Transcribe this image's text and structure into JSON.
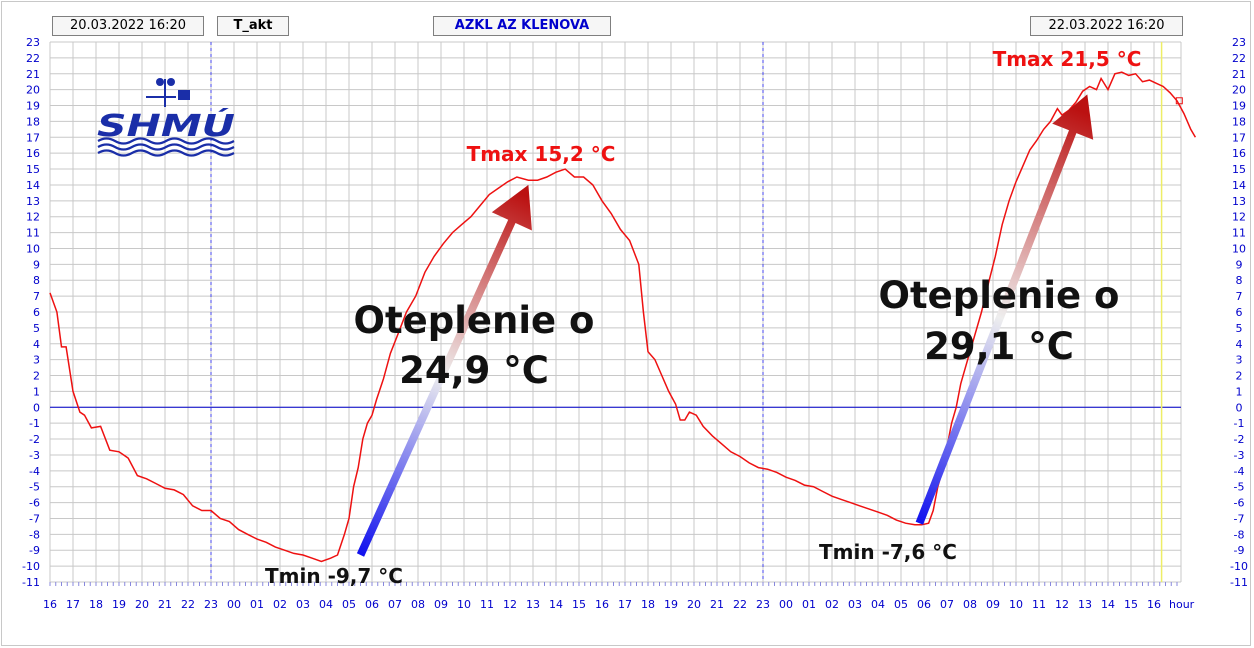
{
  "header": {
    "date_start": "20.03.2022 16:20",
    "parameter": "T_akt",
    "station": "AZKL AZ KLENOVA",
    "date_end": "22.03.2022 16:20"
  },
  "logo": {
    "text": "SHMÚ",
    "color": "#1a2ea8"
  },
  "colors": {
    "series": "#ee1111",
    "axis_labels": "#0000cc",
    "grid": "#c8c8c8",
    "zero_line": "#0000cc",
    "midnight_line": "#4444ee",
    "now_line": "#eeee66",
    "arrow_bottom": "#1111ee",
    "arrow_top": "#bb1111",
    "annotation_dark": "#111111"
  },
  "annotations": {
    "tmax1": "Tmax 15,2 °C",
    "tmax2": "Tmax 21,5 °C",
    "tmin1": "Tmin -9,7 °C",
    "tmin2": "Tmin -7,6 °C",
    "warming1_line1": "Oteplenie o",
    "warming1_line2": "24,9 °C",
    "warming2_line1": "Oteplenie o",
    "warming2_line2": "29,1 °C"
  },
  "chart_data": {
    "type": "line",
    "xlabel": "hour",
    "ylim": [
      -11,
      23
    ],
    "yticks": [
      23,
      22,
      21,
      20,
      19,
      18,
      17,
      16,
      15,
      14,
      13,
      12,
      11,
      10,
      9,
      8,
      7,
      6,
      5,
      4,
      3,
      2,
      1,
      0,
      -1,
      -2,
      -3,
      -4,
      -5,
      -6,
      -7,
      -8,
      -9,
      -10,
      -11
    ],
    "x_tick_labels": [
      "16",
      "17",
      "18",
      "19",
      "20",
      "21",
      "22",
      "23",
      "00",
      "01",
      "02",
      "03",
      "04",
      "05",
      "06",
      "07",
      "08",
      "09",
      "10",
      "11",
      "12",
      "13",
      "14",
      "15",
      "16",
      "17",
      "18",
      "19",
      "20",
      "21",
      "22",
      "23",
      "00",
      "01",
      "02",
      "03",
      "04",
      "05",
      "06",
      "07",
      "08",
      "09",
      "10",
      "11",
      "12",
      "13",
      "14",
      "15",
      "16"
    ],
    "x_unit": "hours since 20.03.2022 16:00",
    "grid": true,
    "series": [
      {
        "points": [
          [
            0.0,
            7.2
          ],
          [
            0.3,
            6.0
          ],
          [
            0.5,
            3.8
          ],
          [
            0.7,
            3.8
          ],
          [
            1.0,
            1.0
          ],
          [
            1.3,
            -0.3
          ],
          [
            1.5,
            -0.5
          ],
          [
            1.8,
            -1.3
          ],
          [
            2.2,
            -1.2
          ],
          [
            2.6,
            -2.7
          ],
          [
            3.0,
            -2.8
          ],
          [
            3.4,
            -3.2
          ],
          [
            3.8,
            -4.3
          ],
          [
            4.2,
            -4.5
          ],
          [
            4.6,
            -4.8
          ],
          [
            5.0,
            -5.1
          ],
          [
            5.4,
            -5.2
          ],
          [
            5.8,
            -5.5
          ],
          [
            6.2,
            -6.2
          ],
          [
            6.6,
            -6.5
          ],
          [
            7.0,
            -6.5
          ],
          [
            7.4,
            -7.0
          ],
          [
            7.8,
            -7.2
          ],
          [
            8.2,
            -7.7
          ],
          [
            8.6,
            -8.0
          ],
          [
            9.0,
            -8.3
          ],
          [
            9.4,
            -8.5
          ],
          [
            9.8,
            -8.8
          ],
          [
            10.2,
            -9.0
          ],
          [
            10.6,
            -9.2
          ],
          [
            11.0,
            -9.3
          ],
          [
            11.4,
            -9.5
          ],
          [
            11.8,
            -9.7
          ],
          [
            12.2,
            -9.5
          ],
          [
            12.5,
            -9.3
          ],
          [
            12.8,
            -8.0
          ],
          [
            13.0,
            -7.0
          ],
          [
            13.2,
            -5.0
          ],
          [
            13.4,
            -3.8
          ],
          [
            13.6,
            -2.0
          ],
          [
            13.8,
            -1.0
          ],
          [
            14.0,
            -0.5
          ],
          [
            14.2,
            0.5
          ],
          [
            14.5,
            1.8
          ],
          [
            14.8,
            3.4
          ],
          [
            15.1,
            4.5
          ],
          [
            15.5,
            6.0
          ],
          [
            15.9,
            7.0
          ],
          [
            16.3,
            8.5
          ],
          [
            16.7,
            9.5
          ],
          [
            17.1,
            10.3
          ],
          [
            17.5,
            11.0
          ],
          [
            17.9,
            11.5
          ],
          [
            18.3,
            12.0
          ],
          [
            18.7,
            12.7
          ],
          [
            19.1,
            13.4
          ],
          [
            19.5,
            13.8
          ],
          [
            19.9,
            14.2
          ],
          [
            20.3,
            14.5
          ],
          [
            20.8,
            14.3
          ],
          [
            21.2,
            14.3
          ],
          [
            21.6,
            14.5
          ],
          [
            22.0,
            14.8
          ],
          [
            22.4,
            15.0
          ],
          [
            22.8,
            14.5
          ],
          [
            23.2,
            14.5
          ],
          [
            23.6,
            14.0
          ],
          [
            24.0,
            13.0
          ],
          [
            24.4,
            12.2
          ],
          [
            24.8,
            11.2
          ],
          [
            25.2,
            10.5
          ],
          [
            25.6,
            9.0
          ],
          [
            25.8,
            6.0
          ],
          [
            26.0,
            3.5
          ],
          [
            26.3,
            3.0
          ],
          [
            26.6,
            2.0
          ],
          [
            26.9,
            1.0
          ],
          [
            27.2,
            0.2
          ],
          [
            27.4,
            -0.8
          ],
          [
            27.6,
            -0.8
          ],
          [
            27.8,
            -0.3
          ],
          [
            28.1,
            -0.5
          ],
          [
            28.4,
            -1.2
          ],
          [
            28.8,
            -1.8
          ],
          [
            29.2,
            -2.3
          ],
          [
            29.6,
            -2.8
          ],
          [
            30.0,
            -3.1
          ],
          [
            30.4,
            -3.5
          ],
          [
            30.8,
            -3.8
          ],
          [
            31.2,
            -3.9
          ],
          [
            31.6,
            -4.1
          ],
          [
            32.0,
            -4.4
          ],
          [
            32.4,
            -4.6
          ],
          [
            32.8,
            -4.9
          ],
          [
            33.2,
            -5.0
          ],
          [
            33.6,
            -5.3
          ],
          [
            34.0,
            -5.6
          ],
          [
            34.4,
            -5.8
          ],
          [
            34.8,
            -6.0
          ],
          [
            35.2,
            -6.2
          ],
          [
            35.6,
            -6.4
          ],
          [
            36.0,
            -6.6
          ],
          [
            36.4,
            -6.8
          ],
          [
            36.8,
            -7.1
          ],
          [
            37.2,
            -7.3
          ],
          [
            37.6,
            -7.4
          ],
          [
            37.9,
            -7.4
          ],
          [
            38.2,
            -7.3
          ],
          [
            38.4,
            -6.5
          ],
          [
            38.6,
            -5.0
          ],
          [
            38.8,
            -4.0
          ],
          [
            39.0,
            -2.5
          ],
          [
            39.2,
            -1.0
          ],
          [
            39.4,
            0.0
          ],
          [
            39.6,
            1.5
          ],
          [
            39.9,
            3.0
          ],
          [
            40.2,
            4.5
          ],
          [
            40.5,
            6.0
          ],
          [
            40.8,
            7.8
          ],
          [
            41.1,
            9.5
          ],
          [
            41.4,
            11.5
          ],
          [
            41.7,
            13.0
          ],
          [
            42.0,
            14.2
          ],
          [
            42.3,
            15.2
          ],
          [
            42.6,
            16.2
          ],
          [
            42.9,
            16.8
          ],
          [
            43.2,
            17.5
          ],
          [
            43.5,
            18.0
          ],
          [
            43.8,
            18.8
          ],
          [
            44.0,
            18.4
          ],
          [
            44.3,
            18.7
          ],
          [
            44.6,
            19.2
          ],
          [
            44.9,
            19.9
          ],
          [
            45.2,
            20.2
          ],
          [
            45.5,
            20.0
          ],
          [
            45.7,
            20.7
          ],
          [
            46.0,
            20.0
          ],
          [
            46.3,
            21.0
          ],
          [
            46.6,
            21.1
          ],
          [
            46.9,
            20.9
          ],
          [
            47.2,
            21.0
          ],
          [
            47.5,
            20.5
          ],
          [
            47.8,
            20.6
          ],
          [
            48.1,
            20.4
          ],
          [
            48.4,
            20.2
          ],
          [
            48.7,
            19.8
          ],
          [
            49.0,
            19.3
          ],
          [
            49.3,
            18.5
          ],
          [
            49.6,
            17.5
          ],
          [
            49.8,
            17.0
          ]
        ]
      }
    ],
    "marker": {
      "x": 49.1,
      "y": 19.3
    },
    "arrows": [
      {
        "from": [
          13.5,
          -9.3
        ],
        "to": [
          20.8,
          14.0
        ]
      },
      {
        "from": [
          37.8,
          -7.3
        ],
        "to": [
          45.1,
          19.7
        ]
      }
    ]
  }
}
